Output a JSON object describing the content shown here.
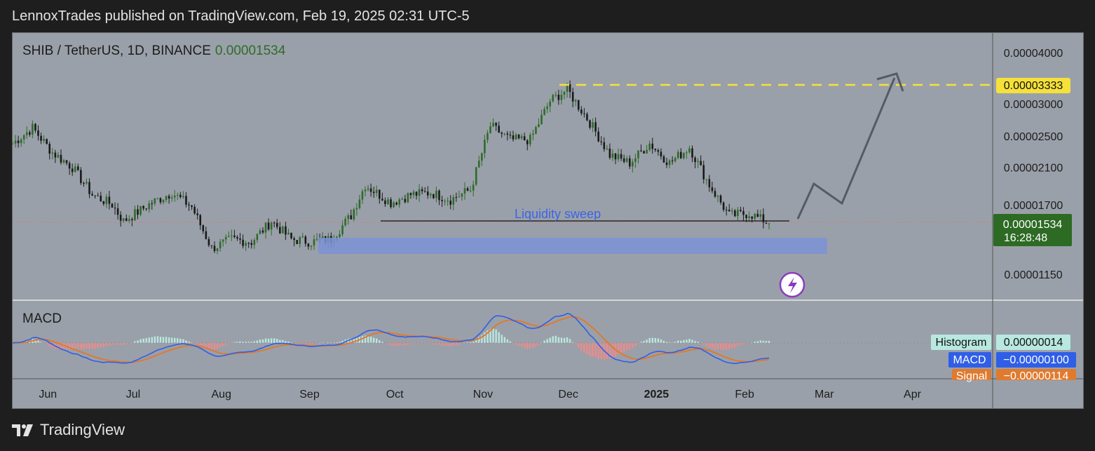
{
  "caption": "LennoxTrades published on TradingView.com, Feb 19, 2025 02:31 UTC-5",
  "chart_header": {
    "symbol": "SHIB / TetherUS, 1D, BINANCE",
    "last_price": "0.00001534"
  },
  "annotation": {
    "liquidity_label": "Liquidity sweep",
    "target_price_label": "0.00003333",
    "target_price": 3.333e-05,
    "support_level": 1.55e-05,
    "demand_zone": {
      "from": 1.39e-05,
      "to": 1.47e-05
    }
  },
  "price_tag": {
    "value": "0.00001534",
    "countdown": "16:28:48"
  },
  "macd_panel": {
    "title": "MACD",
    "rows": [
      {
        "label": "Histogram",
        "value": "0.00000014"
      },
      {
        "label": "MACD",
        "value": "−0.00000100"
      },
      {
        "label": "Signal",
        "value": "−0.00000114"
      }
    ]
  },
  "footer": {
    "brand": "TradingView"
  },
  "colors": {
    "background": "#9aa0a9",
    "candle_up": "#2e6b2a",
    "candle_down": "#1a1a1a",
    "target_line": "#f5e13a",
    "demand_zone": "#7b93d6",
    "macd_line": "#2f5ee8",
    "signal_line": "#e07a2e",
    "hist_positive": "#b8e8df",
    "hist_negative": "#f08a8a",
    "projection": "#555b66",
    "price_tag_bg": "#2d6a24"
  },
  "chart_data": {
    "type": "candlestick",
    "title": "SHIB / TetherUS, 1D, BINANCE",
    "x_tick_labels": [
      "Jun",
      "Jul",
      "Aug",
      "Sep",
      "Oct",
      "Nov",
      "Dec",
      "2025",
      "Feb",
      "Mar",
      "Apr"
    ],
    "y_tick_labels": [
      "0.00004000",
      "0.00003000",
      "0.00002500",
      "0.00002100",
      "0.00001700",
      "0.00001150"
    ],
    "y_scale": "log",
    "ylim": [
      9.5e-06,
      4.4e-05
    ],
    "price_path": [
      [
        "2024-05-27",
        2.4e-05
      ],
      [
        "2024-06-03",
        2.62e-05
      ],
      [
        "2024-06-10",
        2.28e-05
      ],
      [
        "2024-06-17",
        2.1e-05
      ],
      [
        "2024-06-24",
        1.8e-05
      ],
      [
        "2024-07-01",
        1.7e-05
      ],
      [
        "2024-07-05",
        1.55e-05
      ],
      [
        "2024-07-15",
        1.72e-05
      ],
      [
        "2024-07-22",
        1.82e-05
      ],
      [
        "2024-07-29",
        1.68e-05
      ],
      [
        "2024-08-05",
        1.33e-05
      ],
      [
        "2024-08-12",
        1.4e-05
      ],
      [
        "2024-08-19",
        1.38e-05
      ],
      [
        "2024-08-26",
        1.55e-05
      ],
      [
        "2024-09-02",
        1.4e-05
      ],
      [
        "2024-09-09",
        1.38e-05
      ],
      [
        "2024-09-16",
        1.4e-05
      ],
      [
        "2024-09-23",
        1.6e-05
      ],
      [
        "2024-09-28",
        1.9e-05
      ],
      [
        "2024-10-07",
        1.72e-05
      ],
      [
        "2024-10-14",
        1.8e-05
      ],
      [
        "2024-10-21",
        1.82e-05
      ],
      [
        "2024-10-28",
        1.75e-05
      ],
      [
        "2024-11-04",
        1.85e-05
      ],
      [
        "2024-11-11",
        2.65e-05
      ],
      [
        "2024-11-18",
        2.45e-05
      ],
      [
        "2024-11-25",
        2.45e-05
      ],
      [
        "2024-12-02",
        3.05e-05
      ],
      [
        "2024-12-08",
        3.25e-05
      ],
      [
        "2024-12-16",
        2.7e-05
      ],
      [
        "2024-12-23",
        2.25e-05
      ],
      [
        "2024-12-30",
        2.15e-05
      ],
      [
        "2025-01-06",
        2.4e-05
      ],
      [
        "2025-01-13",
        2.15e-05
      ],
      [
        "2025-01-20",
        2.35e-05
      ],
      [
        "2025-01-27",
        1.9e-05
      ],
      [
        "2025-02-03",
        1.6e-05
      ],
      [
        "2025-02-10",
        1.62e-05
      ],
      [
        "2025-02-17",
        1.53e-05
      ]
    ],
    "macd": {
      "histogram_last": 1.4e-07,
      "macd_last": -1e-06,
      "signal_last": -1.14e-06
    }
  }
}
